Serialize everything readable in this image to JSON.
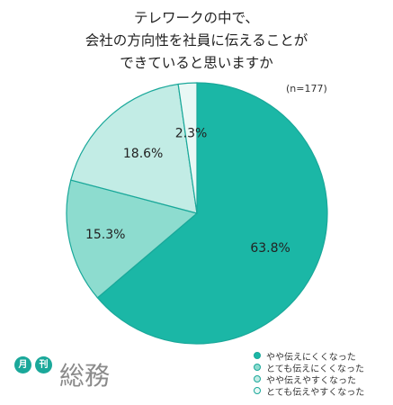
{
  "title_lines": [
    "テレワークの中で、",
    "会社の方向性を社員に伝えることが",
    "できていると思いますか"
  ],
  "sample_size": "(n=177)",
  "brand": {
    "badge_1": "月",
    "badge_2": "刊",
    "name": "総務"
  },
  "colors": {
    "border": "#1aa89a"
  },
  "chart_data": {
    "type": "pie",
    "categories": [
      "やや伝えにくくなった",
      "とても伝えにくくなった",
      "やや伝えやすくなった",
      "とても伝えやすくなった"
    ],
    "values": [
      63.8,
      15.3,
      18.6,
      2.3
    ],
    "labels": [
      "63.8%",
      "15.3%",
      "18.6%",
      "2.3%"
    ],
    "colors": [
      "#1bb7a6",
      "#8ddccf",
      "#c2ece5",
      "#e9f8f5"
    ],
    "start": "12 o'clock, clockwise",
    "legend_position": "bottom-right"
  }
}
